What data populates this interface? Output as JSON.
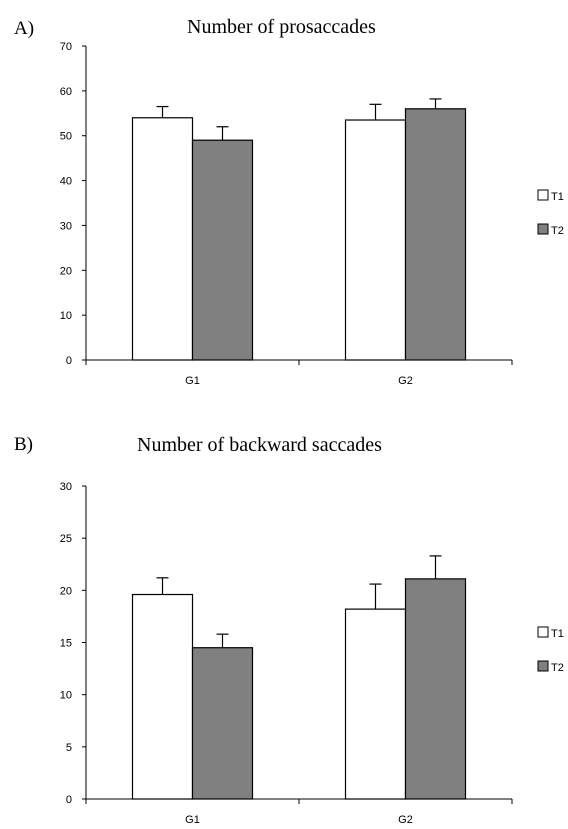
{
  "chart_data": [
    {
      "type": "bar",
      "panel_label": "A)",
      "title": "Number of prosaccades",
      "categories": [
        "G1",
        "G2"
      ],
      "series": [
        {
          "name": "T1",
          "values": [
            54,
            53.5
          ],
          "errors": [
            2.5,
            3.5
          ],
          "color": "#ffffff"
        },
        {
          "name": "T2",
          "values": [
            49,
            56
          ],
          "errors": [
            3,
            2.2
          ],
          "color": "#808080"
        }
      ],
      "xlabel": "",
      "ylabel": "",
      "ylim": [
        0,
        70
      ],
      "yticks": [
        0,
        10,
        20,
        30,
        40,
        50,
        60,
        70
      ],
      "grid": false,
      "legend": "right"
    },
    {
      "type": "bar",
      "panel_label": "B)",
      "title": "Number of backward saccades",
      "categories": [
        "G1",
        "G2"
      ],
      "series": [
        {
          "name": "T1",
          "values": [
            19.6,
            18.2
          ],
          "errors": [
            1.6,
            2.4
          ],
          "color": "#ffffff"
        },
        {
          "name": "T2",
          "values": [
            14.5,
            21.1
          ],
          "errors": [
            1.3,
            2.2
          ],
          "color": "#808080"
        }
      ],
      "xlabel": "",
      "ylabel": "",
      "ylim": [
        0,
        30
      ],
      "yticks": [
        0,
        5,
        10,
        15,
        20,
        25,
        30
      ],
      "grid": false,
      "legend": "right"
    }
  ]
}
